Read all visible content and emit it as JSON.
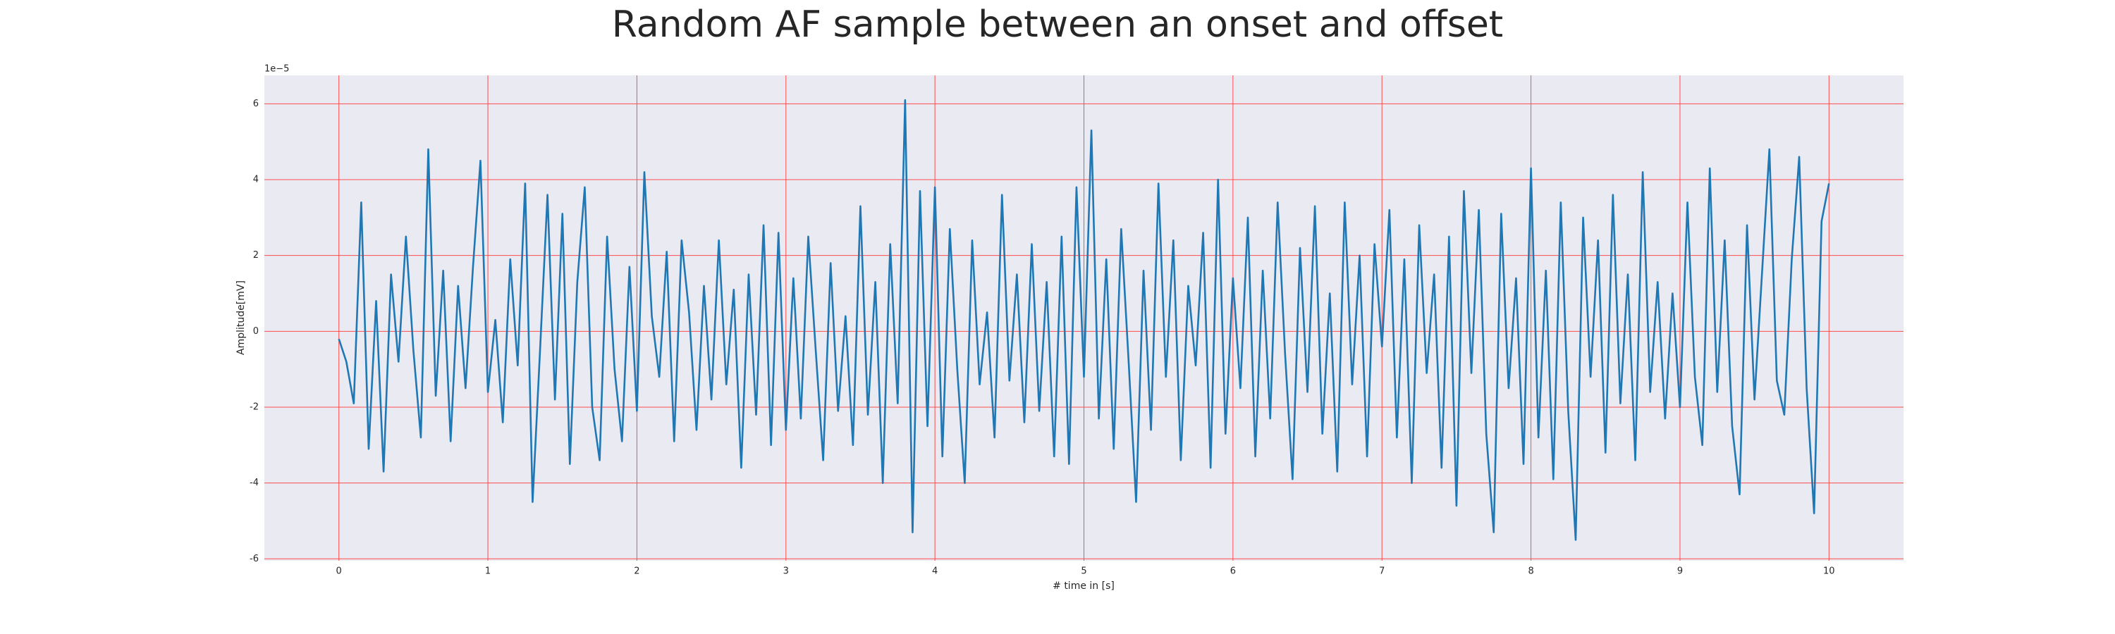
{
  "chart_data": {
    "type": "line",
    "title": "Random AF sample between an onset and offset",
    "xlabel": "# time in [s]",
    "ylabel": "Amplitude[mV]",
    "y_offset_label": "1e−5",
    "color": "#1f77b4",
    "grid": true,
    "grid_color": "#ff4d4d",
    "background": "#eaeaf2",
    "xlim": [
      -0.5,
      10.5
    ],
    "ylim": [
      -6.05,
      6.75
    ],
    "xticks": [
      0,
      1,
      2,
      3,
      4,
      5,
      6,
      7,
      8,
      9,
      10
    ],
    "yticks": [
      -6,
      -4,
      -2,
      0,
      2,
      4,
      6
    ],
    "x": [
      0,
      0.05,
      0.1,
      0.15,
      0.2,
      0.25,
      0.3,
      0.35,
      0.4,
      0.45,
      0.5,
      0.55,
      0.6,
      0.65,
      0.7,
      0.75,
      0.8,
      0.85,
      0.9,
      0.95,
      1,
      1.05,
      1.1,
      1.15,
      1.2,
      1.25,
      1.3,
      1.35,
      1.4,
      1.45,
      1.5,
      1.55,
      1.6,
      1.65,
      1.7,
      1.75,
      1.8,
      1.85,
      1.9,
      1.95,
      2,
      2.05,
      2.1,
      2.15,
      2.2,
      2.25,
      2.3,
      2.35,
      2.4,
      2.45,
      2.5,
      2.55,
      2.6,
      2.65,
      2.7,
      2.75,
      2.8,
      2.85,
      2.9,
      2.95,
      3,
      3.05,
      3.1,
      3.15,
      3.2,
      3.25,
      3.3,
      3.35,
      3.4,
      3.45,
      3.5,
      3.55,
      3.6,
      3.65,
      3.7,
      3.75,
      3.8,
      3.85,
      3.9,
      3.95,
      4,
      4.05,
      4.1,
      4.15,
      4.2,
      4.25,
      4.3,
      4.35,
      4.4,
      4.45,
      4.5,
      4.55,
      4.6,
      4.65,
      4.7,
      4.75,
      4.8,
      4.85,
      4.9,
      4.95,
      5,
      5.05,
      5.1,
      5.15,
      5.2,
      5.25,
      5.3,
      5.35,
      5.4,
      5.45,
      5.5,
      5.55,
      5.6,
      5.65,
      5.7,
      5.75,
      5.8,
      5.85,
      5.9,
      5.95,
      6,
      6.05,
      6.1,
      6.15,
      6.2,
      6.25,
      6.3,
      6.35,
      6.4,
      6.45,
      6.5,
      6.55,
      6.6,
      6.65,
      6.7,
      6.75,
      6.8,
      6.85,
      6.9,
      6.95,
      7,
      7.05,
      7.1,
      7.15,
      7.2,
      7.25,
      7.3,
      7.35,
      7.4,
      7.45,
      7.5,
      7.55,
      7.6,
      7.65,
      7.7,
      7.75,
      7.8,
      7.85,
      7.9,
      7.95,
      8,
      8.05,
      8.1,
      8.15,
      8.2,
      8.25,
      8.3,
      8.35,
      8.4,
      8.45,
      8.5,
      8.55,
      8.6,
      8.65,
      8.7,
      8.75,
      8.8,
      8.85,
      8.9,
      8.95,
      9,
      9.05,
      9.1,
      9.15,
      9.2,
      9.25,
      9.3,
      9.35,
      9.4,
      9.45,
      9.5,
      9.55,
      9.6,
      9.65,
      9.7,
      9.75,
      9.8,
      9.85,
      9.9,
      9.95,
      10
    ],
    "values": [
      -0.2,
      -0.8,
      -1.9,
      3.4,
      -3.1,
      0.8,
      -3.7,
      1.5,
      -0.8,
      2.5,
      -0.5,
      -2.8,
      4.8,
      -1.7,
      1.6,
      -2.9,
      1.2,
      -1.5,
      1.7,
      4.5,
      -1.6,
      0.3,
      -2.4,
      1.9,
      -0.9,
      3.9,
      -4.5,
      -0.5,
      3.6,
      -1.8,
      3.1,
      -3.5,
      1.3,
      3.8,
      -2.0,
      -3.4,
      2.5,
      -1.0,
      -2.9,
      1.7,
      -2.1,
      4.2,
      0.4,
      -1.2,
      2.1,
      -2.9,
      2.4,
      0.5,
      -2.6,
      1.2,
      -1.8,
      2.4,
      -1.4,
      1.1,
      -3.6,
      1.5,
      -2.2,
      2.8,
      -3.0,
      2.6,
      -2.6,
      1.4,
      -2.3,
      2.5,
      -0.5,
      -3.4,
      1.8,
      -2.1,
      0.4,
      -3.0,
      3.3,
      -2.2,
      1.3,
      -4.0,
      2.3,
      -1.9,
      6.1,
      -5.3,
      3.7,
      -2.5,
      3.8,
      -3.3,
      2.7,
      -1.0,
      -4.0,
      2.4,
      -1.4,
      0.5,
      -2.8,
      3.6,
      -1.3,
      1.5,
      -2.4,
      2.3,
      -2.1,
      1.3,
      -3.3,
      2.5,
      -3.5,
      3.8,
      -1.2,
      5.3,
      -2.3,
      1.9,
      -3.1,
      2.7,
      -0.8,
      -4.5,
      1.6,
      -2.6,
      3.9,
      -1.2,
      2.4,
      -3.4,
      1.2,
      -0.9,
      2.6,
      -3.6,
      4.0,
      -2.7,
      1.4,
      -1.5,
      3.0,
      -3.3,
      1.6,
      -2.3,
      3.4,
      -0.6,
      -3.9,
      2.2,
      -1.6,
      3.3,
      -2.7,
      1.0,
      -3.7,
      3.4,
      -1.4,
      2.0,
      -3.3,
      2.3,
      -0.4,
      3.2,
      -2.8,
      1.9,
      -4.0,
      2.8,
      -1.1,
      1.5,
      -3.6,
      2.5,
      -4.6,
      3.7,
      -1.1,
      3.2,
      -2.7,
      -5.3,
      3.1,
      -1.5,
      1.4,
      -3.5,
      4.3,
      -2.8,
      1.6,
      -3.9,
      3.4,
      -2.1,
      -5.5,
      3.0,
      -1.2,
      2.4,
      -3.2,
      3.6,
      -1.9,
      1.5,
      -3.4,
      4.2,
      -1.6,
      1.3,
      -2.3,
      1.0,
      -2.0,
      3.4,
      -1.2,
      -3.0,
      4.3,
      -1.6,
      2.4,
      -2.5,
      -4.3,
      2.8,
      -1.8,
      1.5,
      4.8,
      -1.3,
      -2.2,
      1.9,
      4.6,
      -1.5,
      -4.8,
      2.9,
      3.9
    ]
  }
}
